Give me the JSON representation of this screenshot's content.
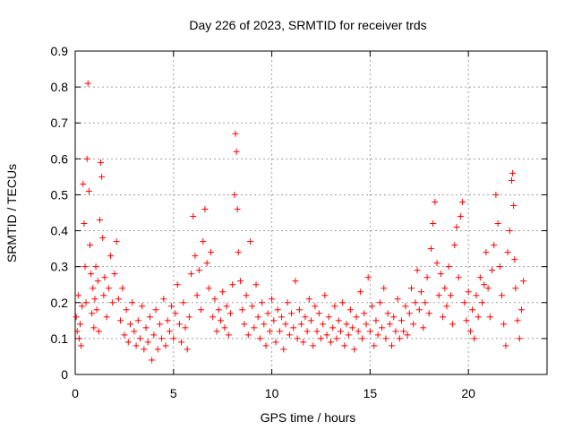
{
  "chart_data": {
    "type": "scatter",
    "title": "Day 226 of 2023, SRMTID for receiver trds",
    "xlabel": "GPS time / hours",
    "ylabel": "SRMTID / TECUs",
    "xlim": [
      0,
      24
    ],
    "ylim": [
      0,
      0.9
    ],
    "x_ticks": [
      0,
      5,
      10,
      15,
      20
    ],
    "y_ticks": [
      0,
      0.1,
      0.2,
      0.3,
      0.4,
      0.5,
      0.6,
      0.7,
      0.8,
      0.9
    ],
    "x_tick_labels": [
      "0",
      "5",
      "10",
      "15",
      "20"
    ],
    "y_tick_labels": [
      "0",
      "0.1",
      "0.2",
      "0.3",
      "0.4",
      "0.5",
      "0.6",
      "0.7",
      "0.8",
      "0.9"
    ],
    "grid": true,
    "marker": "+",
    "marker_color": "#ff0000",
    "series": [
      {
        "name": "trds",
        "points": [
          [
            0.05,
            0.16
          ],
          [
            0.1,
            0.12
          ],
          [
            0.15,
            0.22
          ],
          [
            0.2,
            0.1
          ],
          [
            0.25,
            0.14
          ],
          [
            0.3,
            0.08
          ],
          [
            0.35,
            0.19
          ],
          [
            0.4,
            0.53
          ],
          [
            0.45,
            0.42
          ],
          [
            0.5,
            0.3
          ],
          [
            0.55,
            0.2
          ],
          [
            0.6,
            0.6
          ],
          [
            0.65,
            0.81
          ],
          [
            0.7,
            0.51
          ],
          [
            0.75,
            0.36
          ],
          [
            0.8,
            0.28
          ],
          [
            0.85,
            0.17
          ],
          [
            0.9,
            0.24
          ],
          [
            0.95,
            0.13
          ],
          [
            1.0,
            0.21
          ],
          [
            1.05,
            0.3
          ],
          [
            1.1,
            0.18
          ],
          [
            1.15,
            0.26
          ],
          [
            1.2,
            0.12
          ],
          [
            1.25,
            0.43
          ],
          [
            1.3,
            0.59
          ],
          [
            1.35,
            0.55
          ],
          [
            1.4,
            0.38
          ],
          [
            1.45,
            0.22
          ],
          [
            1.5,
            0.27
          ],
          [
            1.6,
            0.16
          ],
          [
            1.7,
            0.24
          ],
          [
            1.8,
            0.33
          ],
          [
            1.9,
            0.2
          ],
          [
            2.0,
            0.28
          ],
          [
            2.1,
            0.37
          ],
          [
            2.2,
            0.21
          ],
          [
            2.3,
            0.15
          ],
          [
            2.4,
            0.24
          ],
          [
            2.5,
            0.11
          ],
          [
            2.6,
            0.18
          ],
          [
            2.7,
            0.09
          ],
          [
            2.8,
            0.14
          ],
          [
            2.9,
            0.2
          ],
          [
            3.0,
            0.12
          ],
          [
            3.1,
            0.08
          ],
          [
            3.2,
            0.15
          ],
          [
            3.3,
            0.1
          ],
          [
            3.4,
            0.19
          ],
          [
            3.5,
            0.07
          ],
          [
            3.6,
            0.13
          ],
          [
            3.7,
            0.09
          ],
          [
            3.8,
            0.16
          ],
          [
            3.9,
            0.04
          ],
          [
            4.0,
            0.11
          ],
          [
            4.1,
            0.18
          ],
          [
            4.2,
            0.07
          ],
          [
            4.3,
            0.14
          ],
          [
            4.4,
            0.1
          ],
          [
            4.5,
            0.21
          ],
          [
            4.6,
            0.08
          ],
          [
            4.7,
            0.15
          ],
          [
            4.8,
            0.12
          ],
          [
            4.9,
            0.19
          ],
          [
            5.0,
            0.1
          ],
          [
            5.1,
            0.17
          ],
          [
            5.2,
            0.25
          ],
          [
            5.3,
            0.14
          ],
          [
            5.4,
            0.09
          ],
          [
            5.5,
            0.2
          ],
          [
            5.6,
            0.13
          ],
          [
            5.7,
            0.07
          ],
          [
            5.8,
            0.16
          ],
          [
            5.9,
            0.28
          ],
          [
            6.0,
            0.44
          ],
          [
            6.1,
            0.33
          ],
          [
            6.2,
            0.22
          ],
          [
            6.3,
            0.29
          ],
          [
            6.4,
            0.18
          ],
          [
            6.5,
            0.37
          ],
          [
            6.6,
            0.46
          ],
          [
            6.7,
            0.31
          ],
          [
            6.8,
            0.24
          ],
          [
            6.9,
            0.34
          ],
          [
            7.0,
            0.16
          ],
          [
            7.1,
            0.21
          ],
          [
            7.2,
            0.12
          ],
          [
            7.3,
            0.18
          ],
          [
            7.4,
            0.15
          ],
          [
            7.5,
            0.23
          ],
          [
            7.6,
            0.13
          ],
          [
            7.7,
            0.19
          ],
          [
            7.8,
            0.11
          ],
          [
            7.9,
            0.17
          ],
          [
            8.0,
            0.25
          ],
          [
            8.1,
            0.5
          ],
          [
            8.15,
            0.67
          ],
          [
            8.2,
            0.62
          ],
          [
            8.25,
            0.46
          ],
          [
            8.3,
            0.34
          ],
          [
            8.4,
            0.26
          ],
          [
            8.5,
            0.18
          ],
          [
            8.6,
            0.14
          ],
          [
            8.7,
            0.22
          ],
          [
            8.8,
            0.11
          ],
          [
            8.9,
            0.37
          ],
          [
            9.0,
            0.19
          ],
          [
            9.1,
            0.13
          ],
          [
            9.2,
            0.25
          ],
          [
            9.3,
            0.16
          ],
          [
            9.4,
            0.1
          ],
          [
            9.5,
            0.2
          ],
          [
            9.6,
            0.14
          ],
          [
            9.7,
            0.08
          ],
          [
            9.8,
            0.17
          ],
          [
            9.9,
            0.12
          ],
          [
            10.0,
            0.21
          ],
          [
            10.1,
            0.15
          ],
          [
            10.2,
            0.09
          ],
          [
            10.3,
            0.18
          ],
          [
            10.4,
            0.12
          ],
          [
            10.5,
            0.16
          ],
          [
            10.6,
            0.07
          ],
          [
            10.7,
            0.14
          ],
          [
            10.8,
            0.2
          ],
          [
            10.9,
            0.11
          ],
          [
            11.0,
            0.17
          ],
          [
            11.1,
            0.13
          ],
          [
            11.2,
            0.26
          ],
          [
            11.3,
            0.1
          ],
          [
            11.4,
            0.18
          ],
          [
            11.5,
            0.14
          ],
          [
            11.6,
            0.09
          ],
          [
            11.7,
            0.16
          ],
          [
            11.8,
            0.12
          ],
          [
            11.9,
            0.21
          ],
          [
            12.0,
            0.15
          ],
          [
            12.1,
            0.08
          ],
          [
            12.2,
            0.19
          ],
          [
            12.3,
            0.12
          ],
          [
            12.4,
            0.17
          ],
          [
            12.5,
            0.1
          ],
          [
            12.6,
            0.14
          ],
          [
            12.7,
            0.22
          ],
          [
            12.8,
            0.11
          ],
          [
            12.9,
            0.16
          ],
          [
            13.0,
            0.09
          ],
          [
            13.1,
            0.13
          ],
          [
            13.2,
            0.19
          ],
          [
            13.3,
            0.1
          ],
          [
            13.4,
            0.15
          ],
          [
            13.5,
            0.12
          ],
          [
            13.6,
            0.2
          ],
          [
            13.7,
            0.08
          ],
          [
            13.8,
            0.14
          ],
          [
            13.9,
            0.11
          ],
          [
            14.0,
            0.18
          ],
          [
            14.1,
            0.13
          ],
          [
            14.2,
            0.07
          ],
          [
            14.3,
            0.16
          ],
          [
            14.4,
            0.12
          ],
          [
            14.5,
            0.23
          ],
          [
            14.6,
            0.1
          ],
          [
            14.7,
            0.17
          ],
          [
            14.8,
            0.14
          ],
          [
            14.9,
            0.27
          ],
          [
            15.0,
            0.12
          ],
          [
            15.1,
            0.19
          ],
          [
            15.2,
            0.08
          ],
          [
            15.3,
            0.15
          ],
          [
            15.4,
            0.11
          ],
          [
            15.5,
            0.2
          ],
          [
            15.6,
            0.13
          ],
          [
            15.7,
            0.24
          ],
          [
            15.8,
            0.1
          ],
          [
            15.9,
            0.17
          ],
          [
            16.0,
            0.14
          ],
          [
            16.1,
            0.08
          ],
          [
            16.2,
            0.16
          ],
          [
            16.3,
            0.12
          ],
          [
            16.4,
            0.21
          ],
          [
            16.5,
            0.1
          ],
          [
            16.6,
            0.15
          ],
          [
            16.7,
            0.12
          ],
          [
            16.8,
            0.19
          ],
          [
            16.9,
            0.11
          ],
          [
            17.0,
            0.17
          ],
          [
            17.1,
            0.24
          ],
          [
            17.2,
            0.14
          ],
          [
            17.3,
            0.2
          ],
          [
            17.4,
            0.29
          ],
          [
            17.5,
            0.18
          ],
          [
            17.6,
            0.23
          ],
          [
            17.7,
            0.13
          ],
          [
            17.8,
            0.2
          ],
          [
            17.9,
            0.27
          ],
          [
            18.0,
            0.17
          ],
          [
            18.1,
            0.35
          ],
          [
            18.2,
            0.42
          ],
          [
            18.3,
            0.48
          ],
          [
            18.4,
            0.31
          ],
          [
            18.5,
            0.22
          ],
          [
            18.6,
            0.28
          ],
          [
            18.7,
            0.16
          ],
          [
            18.8,
            0.24
          ],
          [
            18.9,
            0.19
          ],
          [
            19.0,
            0.3
          ],
          [
            19.1,
            0.22
          ],
          [
            19.2,
            0.14
          ],
          [
            19.3,
            0.36
          ],
          [
            19.4,
            0.41
          ],
          [
            19.5,
            0.27
          ],
          [
            19.6,
            0.44
          ],
          [
            19.7,
            0.48
          ],
          [
            19.8,
            0.2
          ],
          [
            19.9,
            0.15
          ],
          [
            20.0,
            0.23
          ],
          [
            20.1,
            0.12
          ],
          [
            20.2,
            0.18
          ],
          [
            20.3,
            0.1
          ],
          [
            20.4,
            0.22
          ],
          [
            20.5,
            0.16
          ],
          [
            20.6,
            0.27
          ],
          [
            20.7,
            0.2
          ],
          [
            20.8,
            0.25
          ],
          [
            20.9,
            0.34
          ],
          [
            21.0,
            0.24
          ],
          [
            21.1,
            0.16
          ],
          [
            21.2,
            0.29
          ],
          [
            21.3,
            0.36
          ],
          [
            21.4,
            0.5
          ],
          [
            21.5,
            0.42
          ],
          [
            21.6,
            0.3
          ],
          [
            21.7,
            0.22
          ],
          [
            21.8,
            0.14
          ],
          [
            21.9,
            0.08
          ],
          [
            22.0,
            0.34
          ],
          [
            22.1,
            0.4
          ],
          [
            22.2,
            0.54
          ],
          [
            22.25,
            0.56
          ],
          [
            22.3,
            0.47
          ],
          [
            22.35,
            0.32
          ],
          [
            22.4,
            0.24
          ],
          [
            22.5,
            0.15
          ],
          [
            22.6,
            0.1
          ],
          [
            22.7,
            0.18
          ],
          [
            22.8,
            0.26
          ]
        ]
      }
    ]
  }
}
